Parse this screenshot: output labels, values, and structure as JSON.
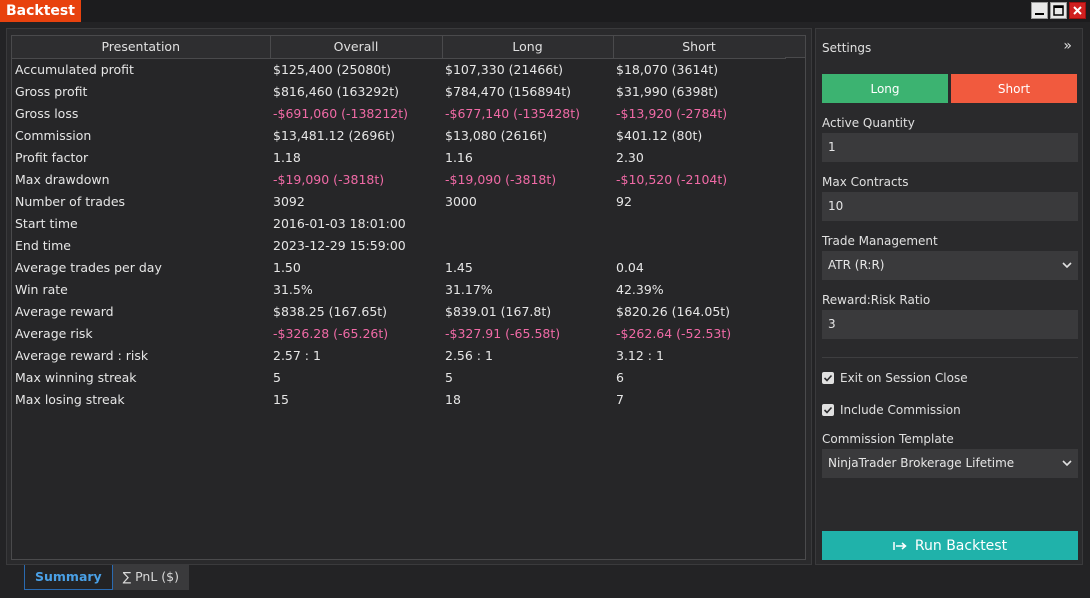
{
  "window": {
    "title": "Backtest"
  },
  "table": {
    "headers": [
      "Presentation",
      "Overall",
      "Long",
      "Short"
    ],
    "rows": [
      {
        "label": "Accumulated profit",
        "overall": "$125,400 (25080t)",
        "long": "$107,330 (21466t)",
        "short": "$18,070 (3614t)",
        "negative": false
      },
      {
        "label": "Gross profit",
        "overall": "$816,460 (163292t)",
        "long": "$784,470 (156894t)",
        "short": "$31,990 (6398t)",
        "negative": false
      },
      {
        "label": "Gross loss",
        "overall": "-$691,060 (-138212t)",
        "long": "-$677,140 (-135428t)",
        "short": "-$13,920 (-2784t)",
        "negative": true
      },
      {
        "label": "Commission",
        "overall": "$13,481.12 (2696t)",
        "long": "$13,080 (2616t)",
        "short": "$401.12 (80t)",
        "negative": false
      },
      {
        "label": "Profit factor",
        "overall": "1.18",
        "long": "1.16",
        "short": "2.30",
        "negative": false
      },
      {
        "label": "Max drawdown",
        "overall": "-$19,090 (-3818t)",
        "long": "-$19,090 (-3818t)",
        "short": "-$10,520 (-2104t)",
        "negative": true
      },
      {
        "label": "Number of trades",
        "overall": "3092",
        "long": "3000",
        "short": "92",
        "negative": false
      },
      {
        "label": "Start time",
        "overall": "2016-01-03 18:01:00",
        "long": "",
        "short": "",
        "negative": false
      },
      {
        "label": "End time",
        "overall": "2023-12-29 15:59:00",
        "long": "",
        "short": "",
        "negative": false
      },
      {
        "label": "Average trades per day",
        "overall": "1.50",
        "long": "1.45",
        "short": "0.04",
        "negative": false
      },
      {
        "label": "Win rate",
        "overall": "31.5%",
        "long": "31.17%",
        "short": "42.39%",
        "negative": false
      },
      {
        "label": "Average reward",
        "overall": "$838.25 (167.65t)",
        "long": "$839.01 (167.8t)",
        "short": "$820.26 (164.05t)",
        "negative": false
      },
      {
        "label": "Average risk",
        "overall": "-$326.28 (-65.26t)",
        "long": "-$327.91 (-65.58t)",
        "short": "-$262.64 (-52.53t)",
        "negative": true
      },
      {
        "label": "Average reward : risk",
        "overall": "2.57 : 1",
        "long": "2.56 : 1",
        "short": "3.12 : 1",
        "negative": false
      },
      {
        "label": "Max winning streak",
        "overall": "5",
        "long": "5",
        "short": "6",
        "negative": false
      },
      {
        "label": "Max losing streak",
        "overall": "15",
        "long": "18",
        "short": "7",
        "negative": false
      }
    ]
  },
  "tabs": {
    "summary": "Summary",
    "pnl": "∑ PnL ($)"
  },
  "settings": {
    "title": "Settings",
    "collapse_glyph": "»",
    "long_label": "Long",
    "short_label": "Short",
    "active_quantity_label": "Active Quantity",
    "active_quantity_value": "1",
    "max_contracts_label": "Max Contracts",
    "max_contracts_value": "10",
    "trade_management_label": "Trade Management",
    "trade_management_value": "ATR (R:R)",
    "reward_risk_label": "Reward:Risk Ratio",
    "reward_risk_value": "3",
    "exit_on_session_close": "Exit on Session Close",
    "include_commission": "Include Commission",
    "commission_template_label": "Commission Template",
    "commission_template_value": "NinjaTrader Brokerage Lifetime",
    "run_label": "Run Backtest"
  },
  "colors": {
    "accent": "#e8420e",
    "long": "#3cb371",
    "short": "#f15a3e",
    "negative": "#f06aa6",
    "run": "#20b2aa",
    "tab_active": "#4aa0e6"
  }
}
